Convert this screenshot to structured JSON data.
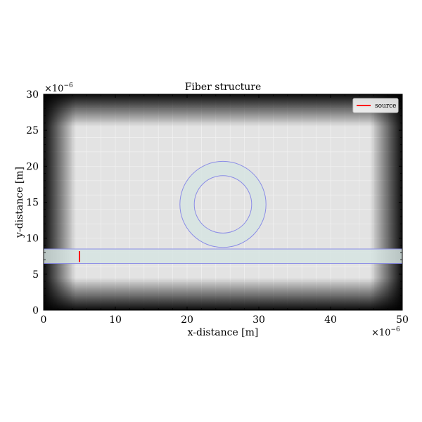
{
  "chart_data": {
    "type": "structure",
    "title": "Fiber structure",
    "xlabel": "x-distance [m]",
    "ylabel": "y-distance [m]",
    "x_exponent_label": "×10",
    "x_exponent_power": "−6",
    "y_exponent_label": "×10",
    "y_exponent_power": "−6",
    "xlim": [
      0,
      50
    ],
    "ylim": [
      0,
      30
    ],
    "xticks": [
      0,
      10,
      20,
      30,
      40,
      50
    ],
    "yticks": [
      0,
      5,
      10,
      15,
      20,
      25,
      30
    ],
    "xtick_labels": [
      "0",
      "10",
      "20",
      "30",
      "40",
      "50"
    ],
    "ytick_labels": [
      "0",
      "5",
      "10",
      "15",
      "20",
      "25",
      "30"
    ],
    "grid": true,
    "pml_thickness": 4.5,
    "waveguide": {
      "x_start": 0,
      "x_end": 50,
      "y_bottom": 6.5,
      "y_top": 8.5
    },
    "ring": {
      "center_x": 25,
      "center_y": 14.7,
      "outer_radius": 6.0,
      "inner_radius": 4.0
    },
    "source": {
      "x": 5.0,
      "y_bottom": 6.7,
      "y_top": 8.2,
      "color": "#ff0000"
    },
    "legend": {
      "position": "top-right",
      "entries": [
        {
          "label": "source",
          "color": "#ff0000"
        }
      ]
    },
    "colors": {
      "background": "#e3e3e3",
      "structure_fill": "#d6e4e2",
      "structure_edge": "#8a8ce6",
      "grid": "#f2f2f2"
    }
  }
}
